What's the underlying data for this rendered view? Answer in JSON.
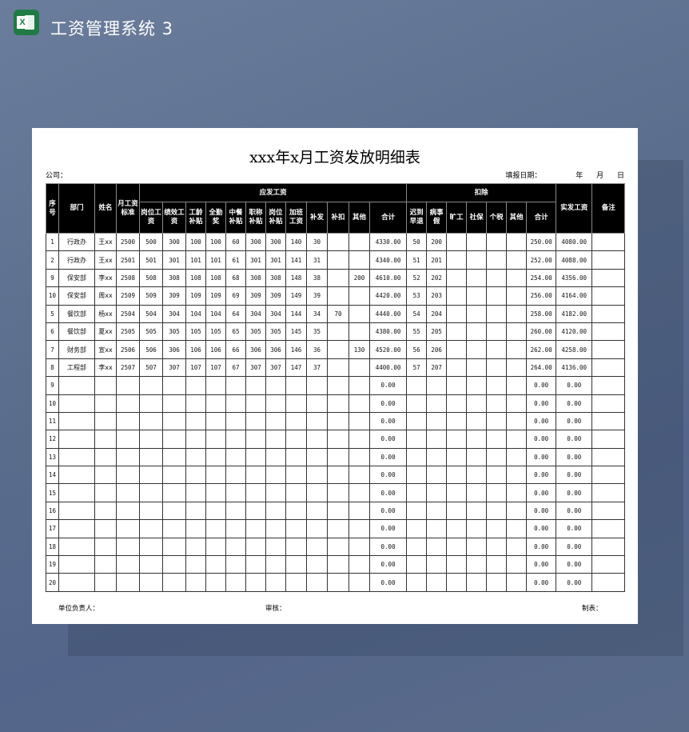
{
  "app": {
    "title": "工资管理系统 3",
    "icon": "excel-icon"
  },
  "sheet": {
    "title": "xxx年x月工资发放明细表",
    "company_label": "公司：",
    "date_label": "填报日期：",
    "date_year": "年",
    "date_month": "月",
    "date_day": "日",
    "headers": {
      "seq": "序号",
      "dept": "部门",
      "name": "姓名",
      "standard": "月工资标准",
      "payable_group": "应发工资",
      "payable": [
        "岗位工资",
        "绩效工资",
        "工龄补贴",
        "全勤奖",
        "中餐补贴",
        "职称补贴",
        "岗位补贴",
        "加班工资",
        "补发",
        "补扣",
        "其他",
        "合计"
      ],
      "deduct_group": "扣除",
      "deduct": [
        "迟到早退",
        "病事假",
        "旷工",
        "社保",
        "个税",
        "其他",
        "合计"
      ],
      "net": "实发工资",
      "remark": "备注"
    },
    "rows": [
      [
        "1",
        "行政办",
        "王xx",
        "2500",
        "500",
        "300",
        "100",
        "100",
        "60",
        "300",
        "300",
        "140",
        "30",
        "",
        "",
        "4330.00",
        "50",
        "200",
        "",
        "",
        "",
        "",
        "250.00",
        "4080.00",
        ""
      ],
      [
        "2",
        "行政办",
        "王xx",
        "2501",
        "501",
        "301",
        "101",
        "101",
        "61",
        "301",
        "301",
        "141",
        "31",
        "",
        "",
        "4340.00",
        "51",
        "201",
        "",
        "",
        "",
        "",
        "252.00",
        "4088.00",
        ""
      ],
      [
        "9",
        "保安部",
        "李xx",
        "2508",
        "508",
        "308",
        "108",
        "108",
        "68",
        "308",
        "308",
        "148",
        "38",
        "",
        "200",
        "4610.00",
        "52",
        "202",
        "",
        "",
        "",
        "",
        "254.00",
        "4356.00",
        ""
      ],
      [
        "10",
        "保安部",
        "周xx",
        "2509",
        "509",
        "309",
        "109",
        "109",
        "69",
        "309",
        "309",
        "149",
        "39",
        "",
        "",
        "4420.00",
        "53",
        "203",
        "",
        "",
        "",
        "",
        "256.00",
        "4164.00",
        ""
      ],
      [
        "5",
        "餐饮部",
        "杨xx",
        "2504",
        "504",
        "304",
        "104",
        "104",
        "64",
        "304",
        "304",
        "144",
        "34",
        "70",
        "",
        "4440.00",
        "54",
        "204",
        "",
        "",
        "",
        "",
        "258.00",
        "4182.00",
        ""
      ],
      [
        "6",
        "餐饮部",
        "夏xx",
        "2505",
        "505",
        "305",
        "105",
        "105",
        "65",
        "305",
        "305",
        "145",
        "35",
        "",
        "",
        "4380.00",
        "55",
        "205",
        "",
        "",
        "",
        "",
        "260.00",
        "4120.00",
        ""
      ],
      [
        "7",
        "财务部",
        "宣xx",
        "2506",
        "506",
        "306",
        "106",
        "106",
        "66",
        "306",
        "306",
        "146",
        "36",
        "",
        "130",
        "4520.00",
        "56",
        "206",
        "",
        "",
        "",
        "",
        "262.00",
        "4258.00",
        ""
      ],
      [
        "8",
        "工程部",
        "李xx",
        "2507",
        "507",
        "307",
        "107",
        "107",
        "67",
        "307",
        "307",
        "147",
        "37",
        "",
        "",
        "4400.00",
        "57",
        "207",
        "",
        "",
        "",
        "",
        "264.00",
        "4136.00",
        ""
      ],
      [
        "9",
        "",
        "",
        "",
        "",
        "",
        "",
        "",
        "",
        "",
        "",
        "",
        "",
        "",
        "",
        "0.00",
        "",
        "",
        "",
        "",
        "",
        "",
        "0.00",
        "0.00",
        ""
      ],
      [
        "10",
        "",
        "",
        "",
        "",
        "",
        "",
        "",
        "",
        "",
        "",
        "",
        "",
        "",
        "",
        "0.00",
        "",
        "",
        "",
        "",
        "",
        "",
        "0.00",
        "0.00",
        ""
      ],
      [
        "11",
        "",
        "",
        "",
        "",
        "",
        "",
        "",
        "",
        "",
        "",
        "",
        "",
        "",
        "",
        "0.00",
        "",
        "",
        "",
        "",
        "",
        "",
        "0.00",
        "0.00",
        ""
      ],
      [
        "12",
        "",
        "",
        "",
        "",
        "",
        "",
        "",
        "",
        "",
        "",
        "",
        "",
        "",
        "",
        "0.00",
        "",
        "",
        "",
        "",
        "",
        "",
        "0.00",
        "0.00",
        ""
      ],
      [
        "13",
        "",
        "",
        "",
        "",
        "",
        "",
        "",
        "",
        "",
        "",
        "",
        "",
        "",
        "",
        "0.00",
        "",
        "",
        "",
        "",
        "",
        "",
        "0.00",
        "0.00",
        ""
      ],
      [
        "14",
        "",
        "",
        "",
        "",
        "",
        "",
        "",
        "",
        "",
        "",
        "",
        "",
        "",
        "",
        "0.00",
        "",
        "",
        "",
        "",
        "",
        "",
        "0.00",
        "0.00",
        ""
      ],
      [
        "15",
        "",
        "",
        "",
        "",
        "",
        "",
        "",
        "",
        "",
        "",
        "",
        "",
        "",
        "",
        "0.00",
        "",
        "",
        "",
        "",
        "",
        "",
        "0.00",
        "0.00",
        ""
      ],
      [
        "16",
        "",
        "",
        "",
        "",
        "",
        "",
        "",
        "",
        "",
        "",
        "",
        "",
        "",
        "",
        "0.00",
        "",
        "",
        "",
        "",
        "",
        "",
        "0.00",
        "0.00",
        ""
      ],
      [
        "17",
        "",
        "",
        "",
        "",
        "",
        "",
        "",
        "",
        "",
        "",
        "",
        "",
        "",
        "",
        "0.00",
        "",
        "",
        "",
        "",
        "",
        "",
        "0.00",
        "0.00",
        ""
      ],
      [
        "18",
        "",
        "",
        "",
        "",
        "",
        "",
        "",
        "",
        "",
        "",
        "",
        "",
        "",
        "",
        "0.00",
        "",
        "",
        "",
        "",
        "",
        "",
        "0.00",
        "0.00",
        ""
      ],
      [
        "19",
        "",
        "",
        "",
        "",
        "",
        "",
        "",
        "",
        "",
        "",
        "",
        "",
        "",
        "",
        "0.00",
        "",
        "",
        "",
        "",
        "",
        "",
        "0.00",
        "0.00",
        ""
      ],
      [
        "20",
        "",
        "",
        "",
        "",
        "",
        "",
        "",
        "",
        "",
        "",
        "",
        "",
        "",
        "",
        "0.00",
        "",
        "",
        "",
        "",
        "",
        "",
        "0.00",
        "0.00",
        ""
      ]
    ],
    "footer": {
      "responsible": "单位负责人：",
      "review": "审核：",
      "prepared": "制表："
    }
  }
}
